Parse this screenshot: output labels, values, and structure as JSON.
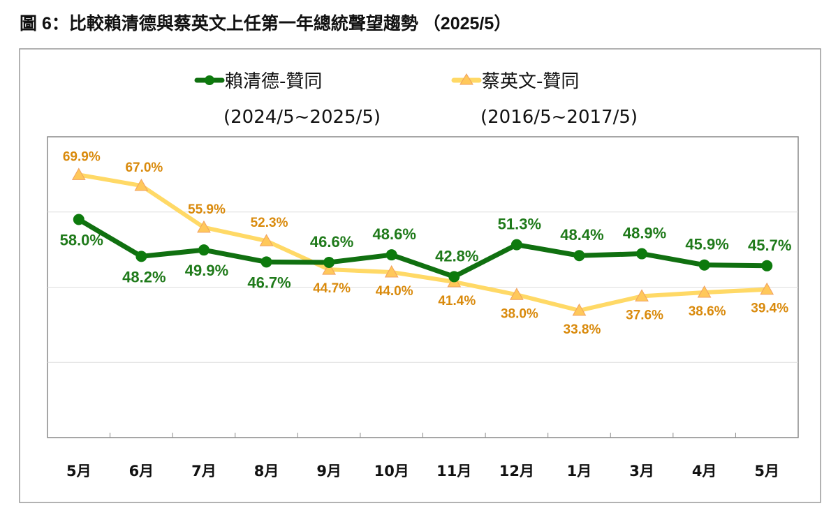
{
  "title": "圖 6：比較賴清德與蔡英文上任第一年總統聲望趨勢 （2025/5）",
  "chart_data": {
    "type": "line",
    "title": "圖 6：比較賴清德與蔡英文上任第一年總統聲望趨勢 （2025/5）",
    "categories": [
      "5月",
      "6月",
      "7月",
      "8月",
      "9月",
      "10月",
      "11月",
      "12月",
      "1月",
      "3月",
      "4月",
      "5月"
    ],
    "ylim": [
      0,
      80
    ],
    "y_grid_step": 20,
    "grid": true,
    "legend_placement": "top",
    "series": [
      {
        "name": "賴清德-贊同",
        "period": "(2024/5~2025/5)",
        "color": "#107010",
        "marker": "circle",
        "values": [
          58.0,
          48.2,
          49.9,
          46.7,
          46.6,
          48.6,
          42.8,
          51.3,
          48.4,
          48.9,
          45.9,
          45.7
        ],
        "labels": [
          "58.0%",
          "48.2%",
          "49.9%",
          "46.7%",
          "46.6%",
          "48.6%",
          "42.8%",
          "51.3%",
          "48.4%",
          "48.9%",
          "45.9%",
          "45.7%"
        ],
        "label_side": [
          "below",
          "below",
          "below",
          "below",
          "above",
          "above",
          "above",
          "above",
          "above",
          "above",
          "above",
          "above"
        ]
      },
      {
        "name": "蔡英文-贊同",
        "period": "(2016/5~2017/5)",
        "color": "#ffd966",
        "marker": "triangle",
        "values": [
          69.9,
          67.0,
          55.9,
          52.3,
          44.7,
          44.0,
          41.4,
          38.0,
          33.8,
          37.6,
          38.6,
          39.4
        ],
        "labels": [
          "69.9%",
          "67.0%",
          "55.9%",
          "52.3%",
          "44.7%",
          "44.0%",
          "41.4%",
          "38.0%",
          "33.8%",
          "37.6%",
          "38.6%",
          "39.4%"
        ],
        "label_side": [
          "above",
          "above",
          "above",
          "above",
          "below",
          "below",
          "below",
          "below",
          "below",
          "below",
          "below",
          "below"
        ]
      }
    ]
  }
}
